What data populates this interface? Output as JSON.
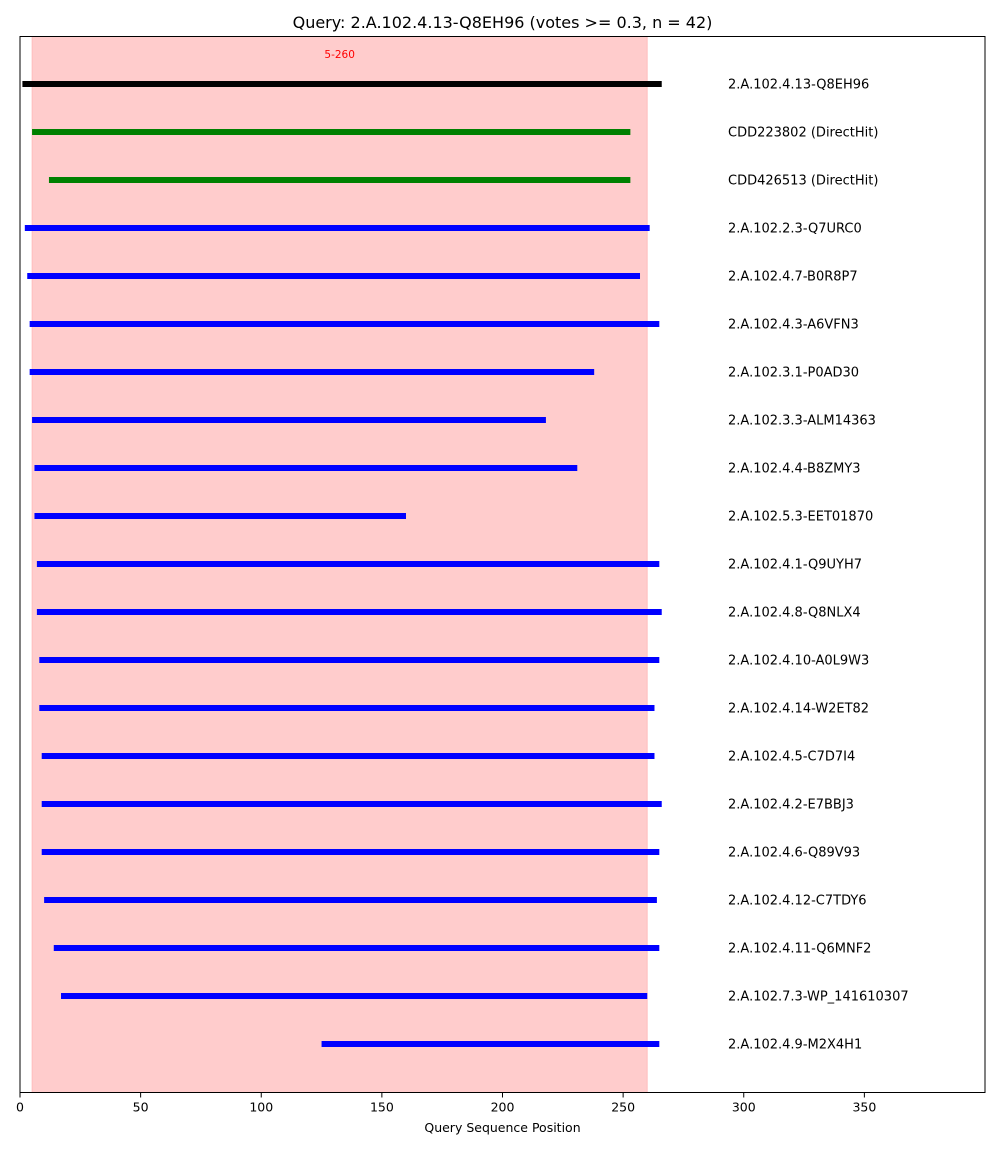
{
  "chart_data": {
    "type": "bar",
    "orientation": "horizontal-segments",
    "title": "Query: 2.A.102.4.13-Q8EH96 (votes >= 0.3, n = 42)",
    "xlabel": "Query Sequence Position",
    "ylabel": "",
    "xlim": [
      0,
      400
    ],
    "xticks": [
      0,
      50,
      100,
      150,
      200,
      250,
      300,
      350
    ],
    "grid": false,
    "highlight_region": {
      "start": 5,
      "end": 260,
      "label": "5-260",
      "color": "#ffcccc"
    },
    "series": [
      {
        "label": "2.A.102.4.13-Q8EH96",
        "start": 1,
        "end": 266,
        "color": "#000000"
      },
      {
        "label": "CDD223802 (DirectHit)",
        "start": 5,
        "end": 253,
        "color": "#008000"
      },
      {
        "label": "CDD426513 (DirectHit)",
        "start": 12,
        "end": 253,
        "color": "#008000"
      },
      {
        "label": "2.A.102.2.3-Q7URC0",
        "start": 2,
        "end": 261,
        "color": "#0000ff"
      },
      {
        "label": "2.A.102.4.7-B0R8P7",
        "start": 3,
        "end": 257,
        "color": "#0000ff"
      },
      {
        "label": "2.A.102.4.3-A6VFN3",
        "start": 4,
        "end": 265,
        "color": "#0000ff"
      },
      {
        "label": "2.A.102.3.1-P0AD30",
        "start": 4,
        "end": 238,
        "color": "#0000ff"
      },
      {
        "label": "2.A.102.3.3-ALM14363",
        "start": 5,
        "end": 218,
        "color": "#0000ff"
      },
      {
        "label": "2.A.102.4.4-B8ZMY3",
        "start": 6,
        "end": 231,
        "color": "#0000ff"
      },
      {
        "label": "2.A.102.5.3-EET01870",
        "start": 6,
        "end": 160,
        "color": "#0000ff"
      },
      {
        "label": "2.A.102.4.1-Q9UYH7",
        "start": 7,
        "end": 265,
        "color": "#0000ff"
      },
      {
        "label": "2.A.102.4.8-Q8NLX4",
        "start": 7,
        "end": 266,
        "color": "#0000ff"
      },
      {
        "label": "2.A.102.4.10-A0L9W3",
        "start": 8,
        "end": 265,
        "color": "#0000ff"
      },
      {
        "label": "2.A.102.4.14-W2ET82",
        "start": 8,
        "end": 263,
        "color": "#0000ff"
      },
      {
        "label": "2.A.102.4.5-C7D7I4",
        "start": 9,
        "end": 263,
        "color": "#0000ff"
      },
      {
        "label": "2.A.102.4.2-E7BBJ3",
        "start": 9,
        "end": 266,
        "color": "#0000ff"
      },
      {
        "label": "2.A.102.4.6-Q89V93",
        "start": 9,
        "end": 265,
        "color": "#0000ff"
      },
      {
        "label": "2.A.102.4.12-C7TDY6",
        "start": 10,
        "end": 264,
        "color": "#0000ff"
      },
      {
        "label": "2.A.102.4.11-Q6MNF2",
        "start": 14,
        "end": 265,
        "color": "#0000ff"
      },
      {
        "label": "2.A.102.7.3-WP_141610307",
        "start": 17,
        "end": 260,
        "color": "#0000ff"
      },
      {
        "label": "2.A.102.4.9-M2X4H1",
        "start": 125,
        "end": 265,
        "color": "#0000ff"
      }
    ]
  }
}
